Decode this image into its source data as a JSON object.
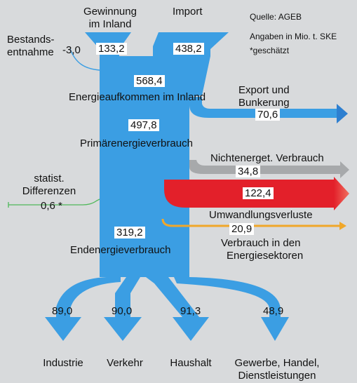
{
  "header": {
    "source": "Quelle: AGEB",
    "units": "Angaben in Mio. t. SKE",
    "estimated": "*geschätzt"
  },
  "inputs": {
    "domestic": {
      "label_line1": "Gewinnung",
      "label_line2": "im Inland",
      "value": "133,2"
    },
    "import": {
      "label": "Import",
      "value": "438,2"
    },
    "stock": {
      "label_line1": "Bestands-",
      "label_line2": "entnahme",
      "value": "-3,0"
    }
  },
  "stages": {
    "supply": {
      "value": "568,4",
      "label": "Energieaufkommen im Inland"
    },
    "primary": {
      "value": "497,8",
      "label": "Primärenergieverbrauch"
    },
    "final": {
      "value": "319,2",
      "label": "Endenergieverbrauch"
    }
  },
  "outflows": {
    "export": {
      "label_line1": "Export und",
      "label_line2": "Bunkerung",
      "value": "70,6",
      "color": "#3b9ee3"
    },
    "nonenergy": {
      "label": "Nichtenerget. Verbrauch",
      "value": "34,8",
      "color": "#a7a9ab"
    },
    "conversion": {
      "label": "Umwandlungsverluste",
      "value": "122,4",
      "color": "#e3202a"
    },
    "sector": {
      "label_line1": "Verbrauch in den",
      "label_line2": "Energiesektoren",
      "value": "20,9",
      "color": "#f0a72a"
    },
    "stat_diff": {
      "label_line1": "statist.",
      "label_line2": "Differenzen",
      "value": "0,6 *",
      "color": "#4fb85a"
    }
  },
  "sectors": [
    {
      "label_line1": "Industrie",
      "label_line2": "",
      "value": "89,0"
    },
    {
      "label_line1": "Verkehr",
      "label_line2": "",
      "value": "90,0"
    },
    {
      "label_line1": "Haushalt",
      "label_line2": "",
      "value": "91,3"
    },
    {
      "label_line1": "Gewerbe, Handel,",
      "label_line2": "Dienstleistungen",
      "value": "48,9"
    }
  ],
  "colors": {
    "flow": "#3b9ee3",
    "background": "#d8dadc"
  }
}
